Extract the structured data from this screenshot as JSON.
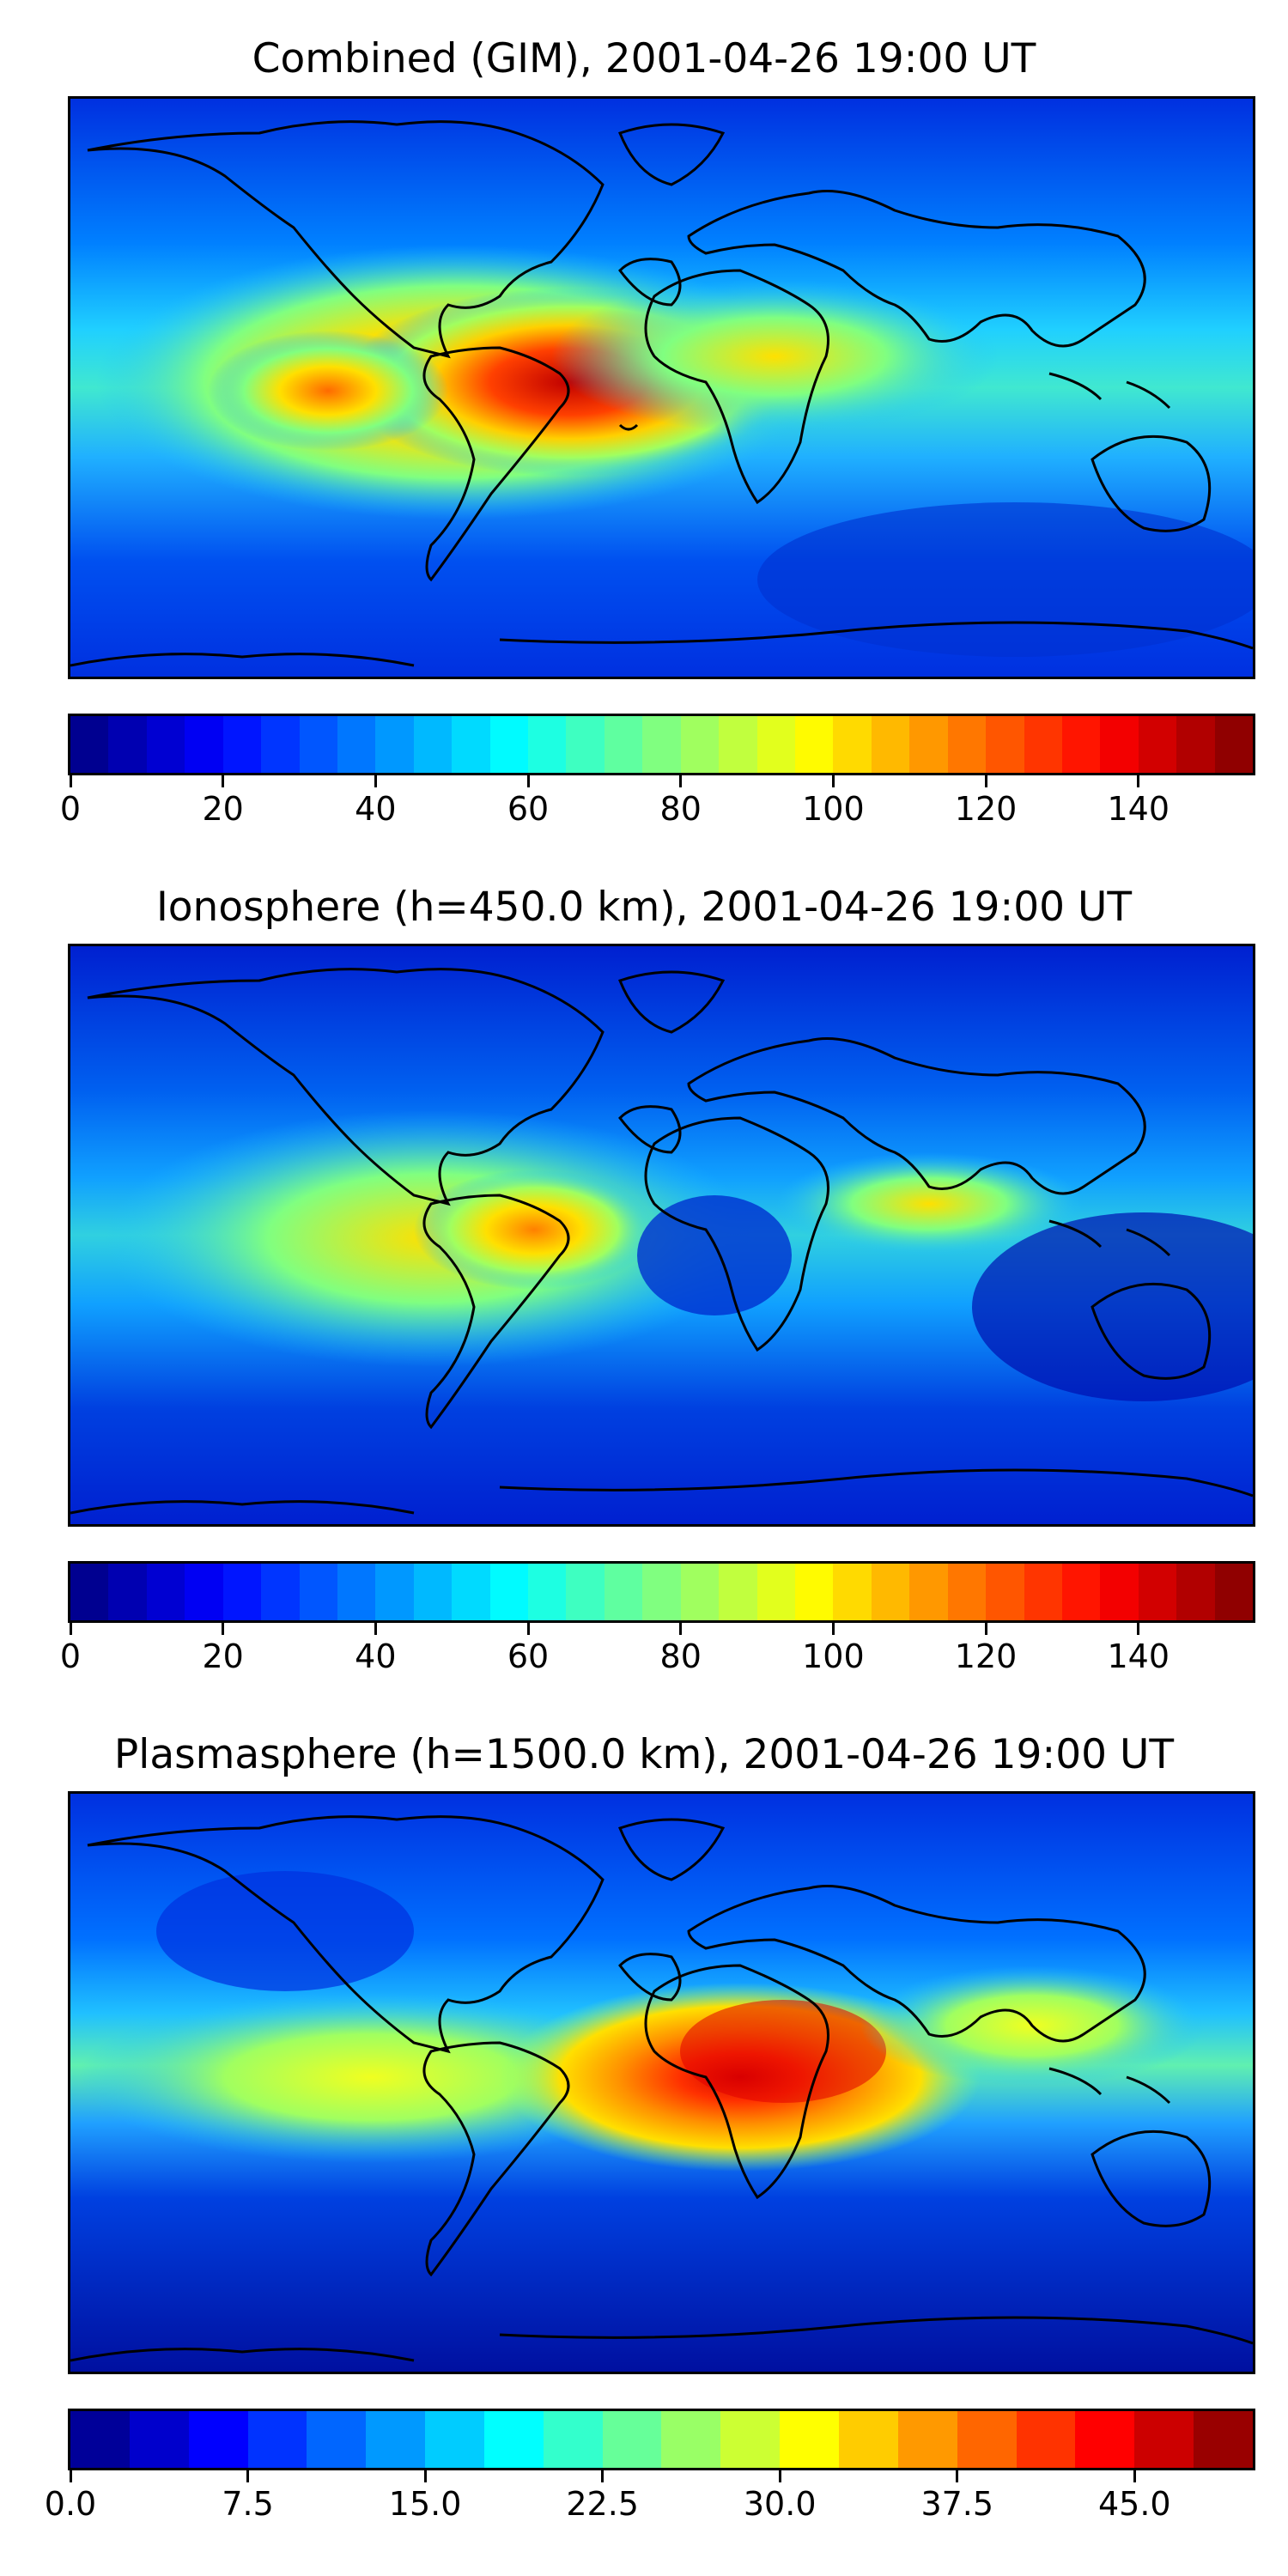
{
  "panels": [
    {
      "title": "Combined (GIM), 2001-04-26 19:00 UT",
      "colorbar": {
        "min": 0,
        "max": 155,
        "levels": 31,
        "ticks": [
          "0",
          "20",
          "40",
          "60",
          "80",
          "100",
          "120",
          "140"
        ],
        "tick_values": [
          0,
          20,
          40,
          60,
          80,
          100,
          120,
          140
        ]
      }
    },
    {
      "title": "Ionosphere  (h=450.0 km), 2001-04-26 19:00 UT",
      "colorbar": {
        "min": 0,
        "max": 155,
        "levels": 31,
        "ticks": [
          "0",
          "20",
          "40",
          "60",
          "80",
          "100",
          "120",
          "140"
        ],
        "tick_values": [
          0,
          20,
          40,
          60,
          80,
          100,
          120,
          140
        ]
      }
    },
    {
      "title": "Plasmasphere (h=1500.0 km), 2001-04-26 19:00 UT",
      "colorbar": {
        "min": 0,
        "max": 50,
        "levels": 20,
        "ticks": [
          "0.0",
          "7.5",
          "15.0",
          "22.5",
          "30.0",
          "37.5",
          "45.0"
        ],
        "tick_values": [
          0,
          7.5,
          15,
          22.5,
          30,
          37.5,
          45
        ]
      }
    }
  ],
  "colormap": "jet",
  "coastline_color": "#000000"
}
